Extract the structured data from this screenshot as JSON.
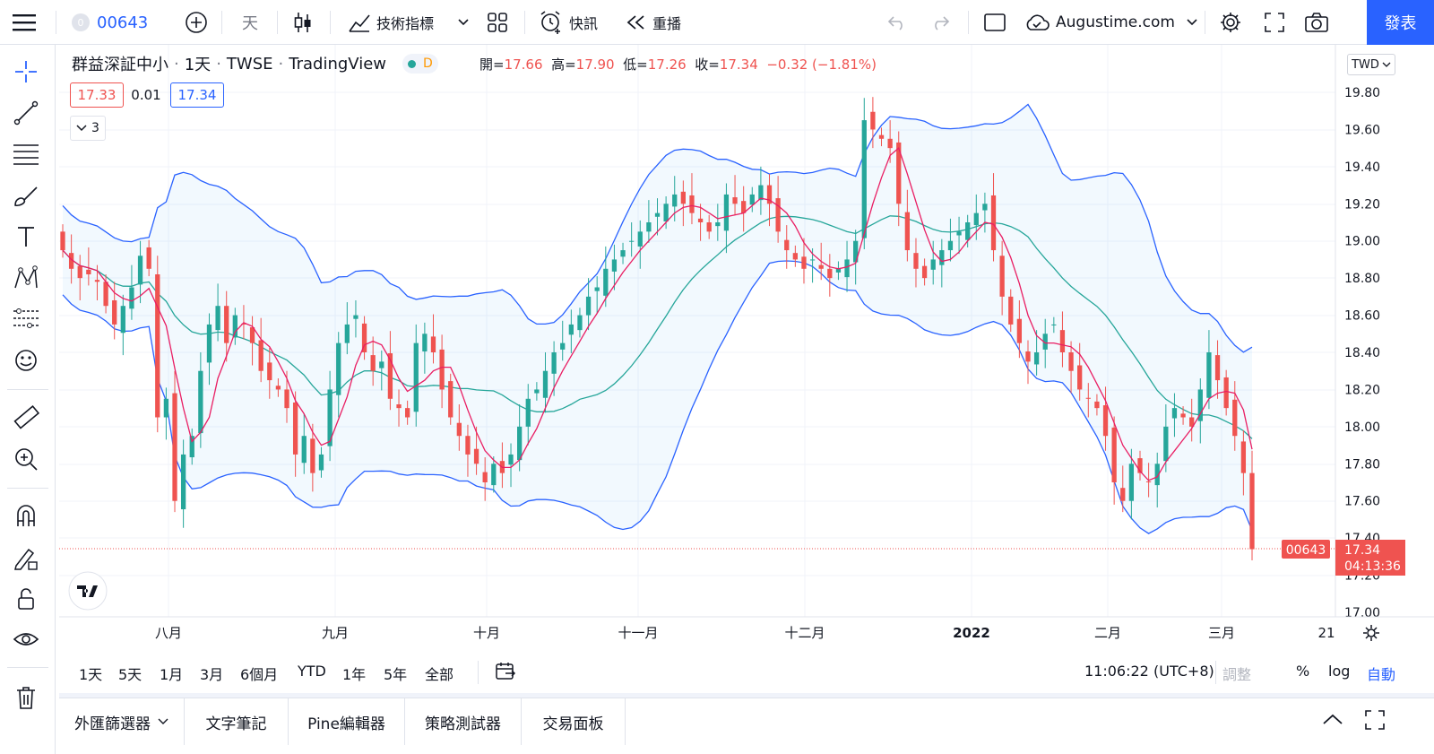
{
  "topbar": {
    "symbol_badge": "0",
    "symbol": "00643",
    "interval": "天",
    "indicators_label": "技術指標",
    "alert_label": "快訊",
    "replay_label": "重播",
    "account_label": "Augustime.com",
    "publish_label": "發表"
  },
  "legend": {
    "name": "群益深証中小",
    "interval": "1天",
    "exchange": "TWSE",
    "source": "TradingView",
    "d_badge": "D",
    "open_label": "開=",
    "open": "17.66",
    "high_label": "高=",
    "high": "17.90",
    "low_label": "低=",
    "low": "17.26",
    "close_label": "收=",
    "close": "17.34",
    "change": "−0.32 (−1.81%)",
    "bid": "17.33",
    "spread": "0.01",
    "ask": "17.34",
    "collapsed_count": "3"
  },
  "price_axis": {
    "currency": "TWD",
    "ticks": [
      "19.80",
      "19.60",
      "19.40",
      "19.20",
      "19.00",
      "18.80",
      "18.60",
      "18.40",
      "18.20",
      "18.00",
      "17.80",
      "17.60",
      "17.40",
      "17.20",
      "17.00"
    ],
    "last_symbol": "00643",
    "last_price": "17.34",
    "countdown": "04:13:36"
  },
  "time_axis": {
    "labels": [
      "八月",
      "九月",
      "十月",
      "十一月",
      "十二月",
      "2022",
      "二月",
      "三月",
      "21"
    ]
  },
  "bottom_toolbar": {
    "ranges": [
      "1天",
      "5天",
      "1月",
      "3月",
      "6個月",
      "YTD",
      "1年",
      "5年",
      "全部"
    ],
    "clock": "11:06:22 (UTC+8)",
    "adjust": "調整",
    "percent": "%",
    "log": "log",
    "auto": "自動"
  },
  "panels": {
    "tabs": [
      "外匯篩選器",
      "文字筆記",
      "Pine編輯器",
      "策略測試器",
      "交易面板"
    ]
  },
  "colors": {
    "up": "#26a69a",
    "down": "#ef5350",
    "band": "#2962ff",
    "basis": "#26a69a",
    "ma": "#e91e63",
    "accent": "#2962ff"
  },
  "chart_data": {
    "type": "candlestick",
    "symbol": "00643",
    "ylim": [
      17.0,
      19.85
    ],
    "series": [
      {
        "name": "close",
        "values": [
          18.95,
          18.85,
          18.8,
          18.82,
          18.78,
          18.65,
          18.55,
          18.65,
          18.75,
          18.92,
          18.85,
          18.05,
          18.15,
          17.6,
          17.85,
          17.95,
          18.3,
          18.55,
          18.65,
          18.45,
          18.6,
          18.55,
          18.45,
          18.3,
          18.25,
          18.2,
          18.1,
          17.85,
          17.95,
          17.75,
          17.85,
          18.2,
          18.45,
          18.55,
          18.6,
          18.4,
          18.3,
          18.35,
          18.15,
          18.1,
          18.05,
          18.45,
          18.5,
          18.4,
          18.2,
          18.05,
          17.95,
          17.85,
          17.8,
          17.7,
          17.8,
          17.75,
          17.85,
          18.0,
          18.15,
          18.2,
          18.3,
          18.4,
          18.45,
          18.55,
          18.6,
          18.7,
          18.75,
          18.85,
          18.9,
          18.95,
          19.0,
          19.05,
          19.1,
          19.15,
          19.2,
          19.25,
          19.2,
          19.15,
          19.1,
          19.05,
          19.1,
          19.25,
          19.2,
          19.15,
          19.25,
          19.3,
          19.2,
          19.05,
          18.95,
          18.9,
          18.85,
          18.9,
          18.85,
          18.8,
          18.85,
          18.9,
          19.0,
          19.65,
          19.6,
          19.55,
          19.5,
          19.2,
          18.95,
          18.85,
          18.8,
          18.9,
          18.95,
          19.0,
          19.05,
          19.1,
          19.15,
          19.2,
          18.95,
          18.7,
          18.55,
          18.45,
          18.35,
          18.4,
          18.5,
          18.55,
          18.4,
          18.3,
          18.2,
          18.15,
          18.1,
          17.95,
          17.7,
          17.6,
          17.8,
          17.75,
          17.7,
          17.8,
          18.0,
          18.1,
          18.05,
          18.0,
          18.2,
          18.4,
          18.25,
          18.1,
          17.95,
          17.75,
          17.34
        ]
      }
    ]
  }
}
